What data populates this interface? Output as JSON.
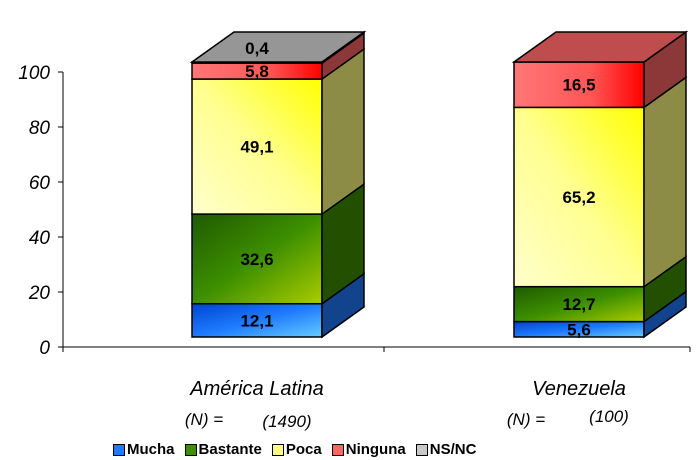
{
  "chart_data": {
    "type": "bar",
    "stacked": true,
    "three_d": true,
    "categories": [
      "América Latina",
      "Venezuela"
    ],
    "n_labels": [
      {
        "prefix": "(N) =",
        "value": "(1490)"
      },
      {
        "prefix": "(N) =",
        "value": "(100)"
      }
    ],
    "series": [
      {
        "name": "Mucha",
        "values": [
          12.1,
          5.6
        ],
        "labels": [
          "12,1",
          "5,6"
        ],
        "color": "#1E7BFF"
      },
      {
        "name": "Bastante",
        "values": [
          32.6,
          12.7
        ],
        "labels": [
          "32,6",
          "12,7"
        ],
        "color": "#3D8F00"
      },
      {
        "name": "Poca",
        "values": [
          49.1,
          65.2
        ],
        "labels": [
          "49,1",
          "65,2"
        ],
        "color": "#FFFF80"
      },
      {
        "name": "Ninguna",
        "values": [
          5.8,
          16.5
        ],
        "labels": [
          "5,8",
          "16,5"
        ],
        "color": "#FF6666"
      },
      {
        "name": "NS/NC",
        "values": [
          0.4,
          0.0
        ],
        "labels": [
          "0,4",
          ""
        ],
        "color": "#C8C8C8"
      }
    ],
    "yticks": [
      "0",
      "20",
      "40",
      "60",
      "80",
      "100"
    ],
    "ylim": [
      0,
      100
    ],
    "grid": false,
    "legend_position": "bottom"
  }
}
